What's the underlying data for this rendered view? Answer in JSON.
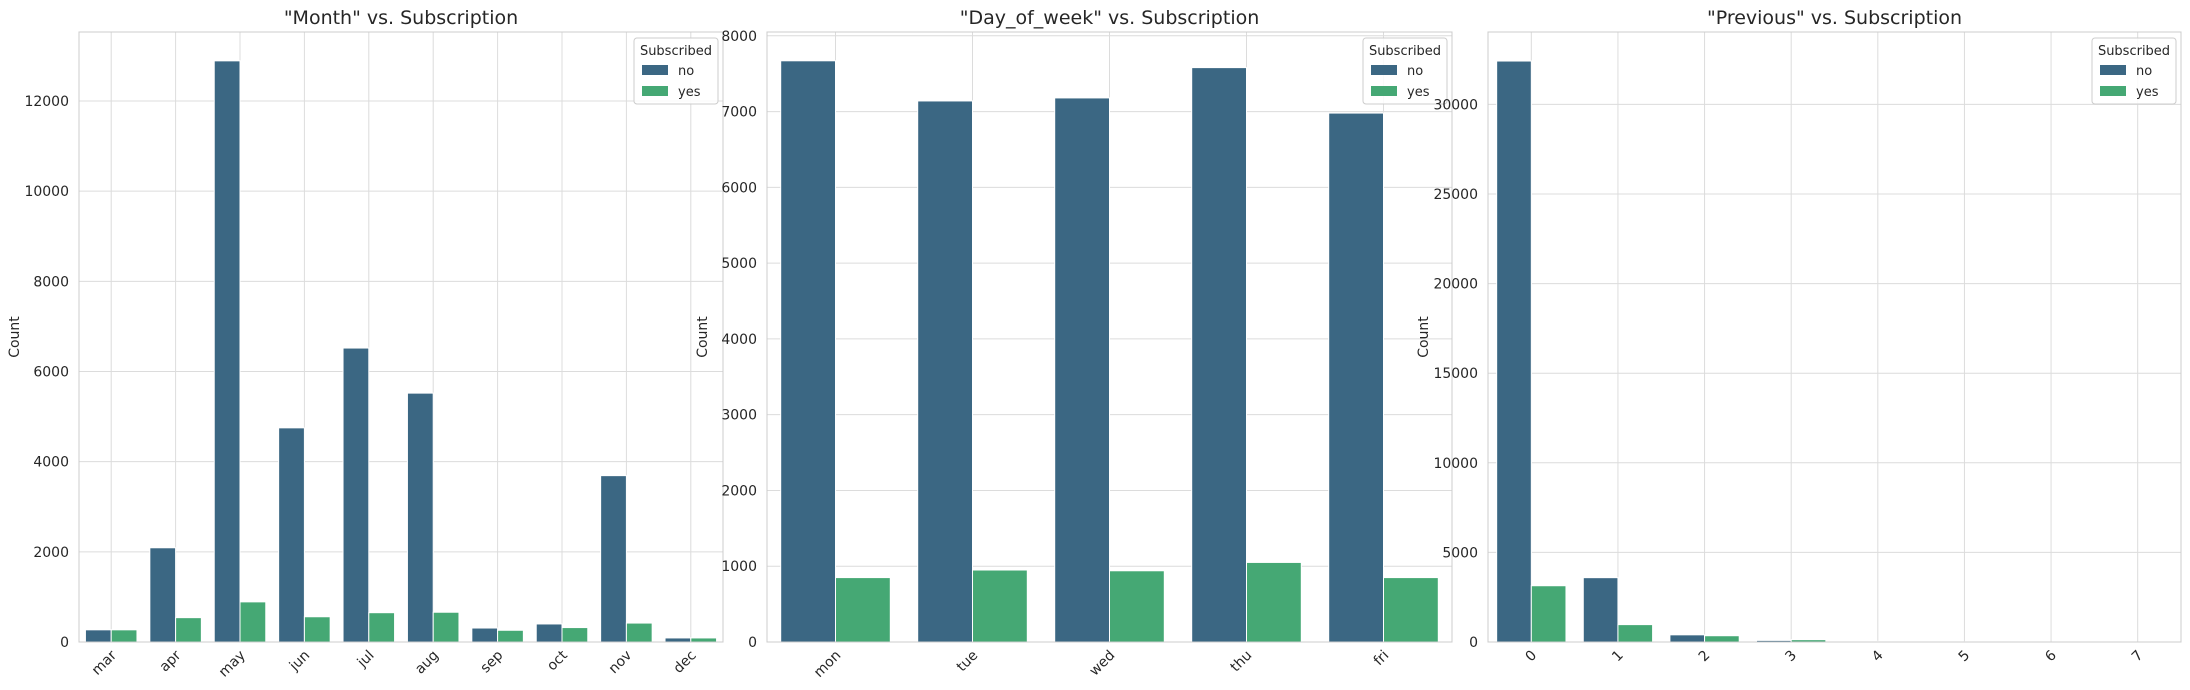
{
  "chart_data": [
    {
      "type": "bar",
      "title": "\"Month\" vs. Subscription",
      "xlabel": "",
      "ylabel": "Count",
      "categories": [
        "mar",
        "apr",
        "may",
        "jun",
        "jul",
        "aug",
        "sep",
        "oct",
        "nov",
        "dec"
      ],
      "series": [
        {
          "name": "no",
          "values": [
            270,
            2090,
            12890,
            4750,
            6520,
            5520,
            310,
            400,
            3690,
            90
          ]
        },
        {
          "name": "yes",
          "values": [
            270,
            540,
            890,
            560,
            650,
            660,
            260,
            320,
            420,
            90
          ]
        }
      ],
      "ylim": [
        0,
        13530
      ],
      "yticks": [
        0,
        2000,
        4000,
        6000,
        8000,
        10000,
        12000
      ],
      "legend": {
        "title": "Subscribed",
        "position": "top-right"
      }
    },
    {
      "type": "bar",
      "title": "\"Day_of_week\" vs. Subscription",
      "xlabel": "",
      "ylabel": "Count",
      "categories": [
        "mon",
        "tue",
        "wed",
        "thu",
        "fri"
      ],
      "series": [
        {
          "name": "no",
          "values": [
            7670,
            7140,
            7180,
            7580,
            6980
          ]
        },
        {
          "name": "yes",
          "values": [
            850,
            950,
            940,
            1050,
            850
          ]
        }
      ],
      "ylim": [
        0,
        8050
      ],
      "yticks": [
        0,
        1000,
        2000,
        3000,
        4000,
        5000,
        6000,
        7000,
        8000
      ],
      "legend": {
        "title": "Subscribed",
        "position": "top-right"
      }
    },
    {
      "type": "bar",
      "title": "\"Previous\" vs. Subscription",
      "xlabel": "",
      "ylabel": "Count",
      "categories": [
        "0",
        "1",
        "2",
        "3",
        "4",
        "5",
        "6",
        "7"
      ],
      "series": [
        {
          "name": "no",
          "values": [
            32420,
            3590,
            400,
            90,
            20,
            5,
            2,
            1
          ]
        },
        {
          "name": "yes",
          "values": [
            3140,
            970,
            350,
            130,
            40,
            13,
            3,
            0
          ]
        }
      ],
      "ylim": [
        0,
        34040
      ],
      "yticks": [
        0,
        5000,
        10000,
        15000,
        20000,
        25000,
        30000
      ],
      "legend": {
        "title": "Subscribed",
        "position": "top-right"
      }
    }
  ],
  "colors": {
    "no": "#3b6783",
    "yes": "#45a874",
    "grid": "#dcdcdc",
    "frame": "#cccccc",
    "text": "#262626"
  }
}
